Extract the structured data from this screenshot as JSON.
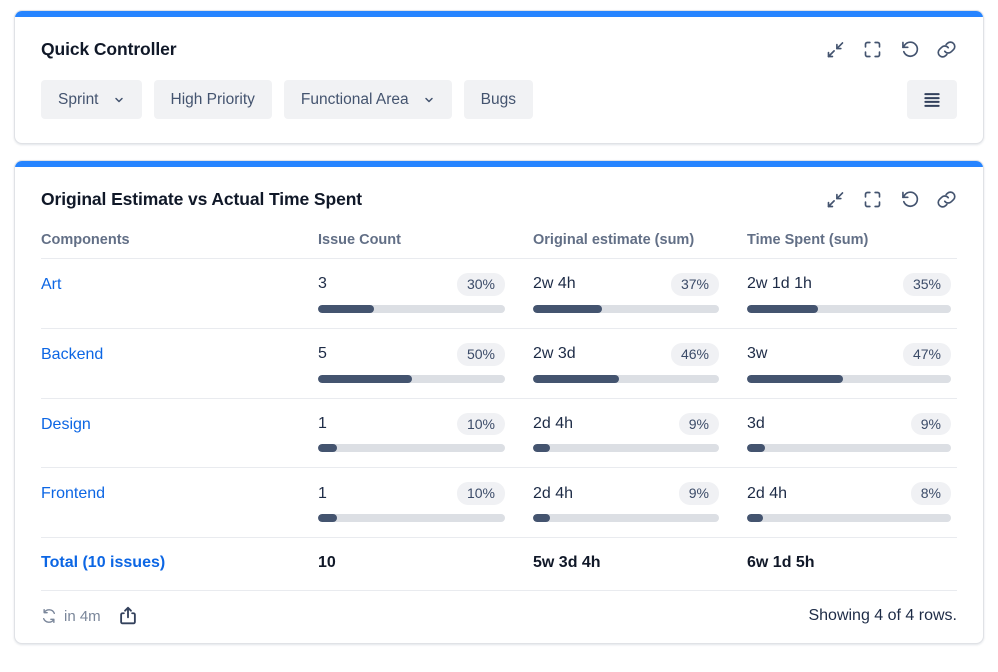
{
  "colors": {
    "accent_top_bar": "#2684FF",
    "link_blue": "#0C66E4",
    "bar_fill": "#44546F",
    "bar_track": "#DCDFE4",
    "badge_bg": "#F0F1F4",
    "header_text": "#626F86"
  },
  "quick_controller": {
    "title": "Quick Controller",
    "filters": [
      {
        "label": "Sprint",
        "has_dropdown": true
      },
      {
        "label": "High Priority",
        "has_dropdown": false
      },
      {
        "label": "Functional Area",
        "has_dropdown": true
      },
      {
        "label": "Bugs",
        "has_dropdown": false
      }
    ],
    "icons": [
      "minimize-icon",
      "expand-icon",
      "reset-icon",
      "link-icon",
      "menu-lines-icon"
    ]
  },
  "report": {
    "title": "Original Estimate vs Actual Time Spent",
    "icons": [
      "minimize-icon",
      "expand-icon",
      "reset-icon",
      "link-icon"
    ],
    "table": {
      "columns": [
        "Components",
        "Issue Count",
        "Original estimate (sum)",
        "Time Spent (sum)"
      ],
      "rows": [
        {
          "component": "Art",
          "issue_count": {
            "value": "3",
            "pct": "30%",
            "bar": 30
          },
          "original_estimate": {
            "value": "2w 4h",
            "pct": "37%",
            "bar": 37
          },
          "time_spent": {
            "value": "2w 1d 1h",
            "pct": "35%",
            "bar": 35
          }
        },
        {
          "component": "Backend",
          "issue_count": {
            "value": "5",
            "pct": "50%",
            "bar": 50
          },
          "original_estimate": {
            "value": "2w 3d",
            "pct": "46%",
            "bar": 46
          },
          "time_spent": {
            "value": "3w",
            "pct": "47%",
            "bar": 47
          }
        },
        {
          "component": "Design",
          "issue_count": {
            "value": "1",
            "pct": "10%",
            "bar": 10
          },
          "original_estimate": {
            "value": "2d 4h",
            "pct": "9%",
            "bar": 9
          },
          "time_spent": {
            "value": "3d",
            "pct": "9%",
            "bar": 9
          }
        },
        {
          "component": "Frontend",
          "issue_count": {
            "value": "1",
            "pct": "10%",
            "bar": 10
          },
          "original_estimate": {
            "value": "2d 4h",
            "pct": "9%",
            "bar": 9
          },
          "time_spent": {
            "value": "2d 4h",
            "pct": "8%",
            "bar": 8
          }
        }
      ],
      "total": {
        "label": "Total (10 issues)",
        "issue_count": "10",
        "original_estimate": "5w 3d 4h",
        "time_spent": "6w 1d 5h"
      }
    },
    "footer": {
      "refresh_in": "in 4m",
      "showing": "Showing 4 of 4 rows."
    }
  }
}
